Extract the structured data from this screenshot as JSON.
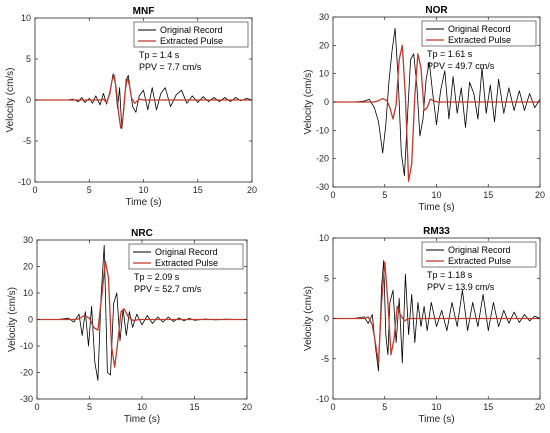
{
  "chart_data": [
    {
      "type": "line",
      "title": "MNF",
      "xlabel": "Time (s)",
      "ylabel": "Velocity (cm/s)",
      "xlim": [
        0,
        20
      ],
      "ylim": [
        -10,
        10
      ],
      "xticks": [
        0,
        5,
        10,
        15,
        20
      ],
      "yticks": [
        -10,
        -5,
        0,
        5,
        10
      ],
      "grid": false,
      "legend_position": "top-right",
      "annotations": [
        "Tp = 1.4 s",
        "PPV = 7.7 cm/s"
      ],
      "series": [
        {
          "name": "Original Record",
          "color": "#000000",
          "x": [
            0,
            1,
            2,
            3,
            3.5,
            4,
            4.3,
            4.6,
            5,
            5.3,
            5.6,
            6,
            6.3,
            6.6,
            7,
            7.2,
            7.4,
            7.6,
            7.8,
            8,
            8.2,
            8.4,
            8.6,
            8.8,
            9,
            9.3,
            9.6,
            10,
            10.4,
            10.8,
            11.2,
            11.6,
            12,
            12.5,
            13,
            13.5,
            14,
            14.5,
            15,
            15.5,
            16,
            16.5,
            17,
            17.5,
            18,
            18.5,
            19,
            19.5,
            20
          ],
          "y": [
            0,
            0,
            0,
            0,
            0.1,
            -0.2,
            0.3,
            -0.3,
            0.2,
            -0.4,
            0.5,
            -0.6,
            0.8,
            -0.5,
            1.5,
            3.2,
            2,
            -1,
            1.5,
            -3.5,
            -1,
            2.5,
            3,
            1,
            -0.8,
            -1.5,
            0.5,
            1.2,
            -1.2,
            1.5,
            -1.2,
            0.8,
            1.5,
            -0.8,
            0.6,
            1.2,
            -0.4,
            0.5,
            -0.3,
            0.4,
            -0.2,
            0.3,
            -0.2,
            0.3,
            -0.2,
            0.3,
            -0.1,
            0.2,
            0
          ]
        },
        {
          "name": "Extracted Pulse",
          "color": "#c0392b",
          "x": [
            0,
            6,
            6.3,
            6.6,
            6.9,
            7.1,
            7.3,
            7.5,
            7.7,
            7.9,
            8.1,
            8.3,
            8.5,
            8.7,
            8.9,
            9.2,
            9.6,
            10,
            20
          ],
          "y": [
            0,
            0,
            0.1,
            -0.3,
            0.8,
            2.4,
            3,
            1.2,
            -1.5,
            -3.4,
            -2.2,
            1,
            2.7,
            1.8,
            0.2,
            -0.4,
            0.1,
            0,
            0
          ]
        }
      ]
    },
    {
      "type": "line",
      "title": "NOR",
      "xlabel": "Time (s)",
      "ylabel": "Velocity (cm/s)",
      "xlim": [
        0,
        20
      ],
      "ylim": [
        -30,
        30
      ],
      "xticks": [
        0,
        5,
        10,
        15,
        20
      ],
      "yticks": [
        -30,
        -20,
        -10,
        0,
        10,
        20,
        30
      ],
      "grid": false,
      "legend_position": "top-right",
      "annotations": [
        "Tp = 1.61 s",
        "PPV = 49.7 cm/s"
      ],
      "series": [
        {
          "name": "Original Record",
          "color": "#000000",
          "x": [
            0,
            2,
            3,
            3.5,
            4,
            4.4,
            4.8,
            5.1,
            5.4,
            5.7,
            6,
            6.3,
            6.6,
            6.9,
            7.2,
            7.5,
            7.8,
            8.1,
            8.4,
            8.7,
            9,
            9.3,
            9.6,
            10,
            10.4,
            10.8,
            11.2,
            11.6,
            12,
            12.4,
            12.8,
            13.2,
            13.6,
            14,
            14.4,
            14.8,
            15.2,
            15.6,
            16,
            16.5,
            17,
            17.5,
            18,
            18.5,
            19,
            19.5,
            20
          ],
          "y": [
            0,
            0,
            0.3,
            1,
            -2,
            -7,
            -18,
            -8,
            7,
            18,
            26,
            8,
            -18,
            -26,
            -5,
            15,
            17,
            6,
            -12,
            -6,
            8,
            14,
            4,
            -8,
            4,
            11,
            -6,
            9,
            -4,
            5,
            -9,
            7,
            3,
            -6,
            12,
            -4,
            6,
            -7,
            8,
            -4,
            5,
            -3,
            4,
            -3,
            3,
            -2,
            1
          ]
        },
        {
          "name": "Extracted Pulse",
          "color": "#c0392b",
          "x": [
            0,
            4,
            4.4,
            4.8,
            5.2,
            5.5,
            5.8,
            6.1,
            6.4,
            6.7,
            7,
            7.3,
            7.6,
            7.9,
            8.2,
            8.5,
            8.8,
            9.1,
            9.4,
            9.8,
            10.2,
            20
          ],
          "y": [
            0,
            0,
            0.5,
            1.2,
            0.5,
            -2,
            -6,
            -1,
            15,
            20,
            2,
            -28,
            -22,
            2,
            17,
            12,
            -3,
            -2,
            1,
            0.3,
            0,
            0
          ]
        }
      ]
    },
    {
      "type": "line",
      "title": "NRC",
      "xlabel": "Time (s)",
      "ylabel": "Velocity (cm/s)",
      "xlim": [
        0,
        20
      ],
      "ylim": [
        -30,
        30
      ],
      "xticks": [
        0,
        5,
        10,
        15,
        20
      ],
      "yticks": [
        -30,
        -20,
        -10,
        0,
        10,
        20,
        30
      ],
      "grid": false,
      "legend_position": "top-right",
      "annotations": [
        "Tp = 2.09 s",
        "PPV = 52.7 cm/s"
      ],
      "series": [
        {
          "name": "Original Record",
          "color": "#000000",
          "x": [
            0,
            2,
            3,
            3.5,
            4,
            4.3,
            4.6,
            4.9,
            5.2,
            5.5,
            5.8,
            6.1,
            6.4,
            6.7,
            7,
            7.3,
            7.6,
            7.9,
            8.2,
            8.5,
            8.8,
            9.1,
            9.5,
            10,
            10.5,
            11,
            11.5,
            12,
            12.5,
            13,
            13.5,
            14,
            14.5,
            15,
            16,
            17,
            18,
            19,
            20
          ],
          "y": [
            0,
            0,
            0.5,
            -1,
            2,
            -6,
            3,
            -10,
            5,
            -16,
            -23,
            8,
            28,
            -20,
            -21,
            6,
            10,
            -8,
            4,
            -6,
            3,
            -3,
            2,
            -2,
            1.5,
            -1.5,
            1,
            -1,
            1,
            -0.8,
            0.6,
            -0.5,
            0.4,
            -0.3,
            0.2,
            -0.1,
            0.1,
            0,
            0
          ]
        },
        {
          "name": "Extracted Pulse",
          "color": "#c0392b",
          "x": [
            0,
            3.5,
            4,
            4.5,
            5,
            5.4,
            5.8,
            6.2,
            6.5,
            6.8,
            7.1,
            7.4,
            7.7,
            8,
            8.3,
            8.7,
            9.2,
            9.7,
            20
          ],
          "y": [
            0,
            0,
            0.3,
            1.5,
            0.5,
            -3,
            -4,
            10,
            22,
            16,
            -10,
            -18,
            -8,
            3,
            4,
            1,
            -0.5,
            0,
            0
          ]
        }
      ]
    },
    {
      "type": "line",
      "title": "RM33",
      "xlabel": "Time (s)",
      "ylabel": "Velocity (cm/s)",
      "xlim": [
        0,
        20
      ],
      "ylim": [
        -10,
        10
      ],
      "xticks": [
        0,
        5,
        10,
        15,
        20
      ],
      "yticks": [
        -10,
        -5,
        0,
        5,
        10
      ],
      "grid": false,
      "legend_position": "top-right",
      "annotations": [
        "Tp = 1.18 s",
        "PPV = 13.9 cm/s"
      ],
      "series": [
        {
          "name": "Original Record",
          "color": "#000000",
          "x": [
            0,
            2,
            3,
            3.4,
            3.8,
            4.1,
            4.4,
            4.7,
            4.9,
            5.1,
            5.3,
            5.5,
            5.8,
            6.1,
            6.4,
            6.7,
            7,
            7.3,
            7.6,
            7.9,
            8.2,
            8.5,
            8.8,
            9.1,
            9.5,
            10,
            10.5,
            11,
            11.5,
            12,
            12.5,
            13,
            13.5,
            14,
            14.5,
            15,
            15.5,
            16,
            16.5,
            17,
            17.5,
            18,
            18.5,
            19,
            19.5,
            20
          ],
          "y": [
            0,
            0,
            0.2,
            -0.6,
            0.5,
            -3.5,
            -6.5,
            4,
            7.2,
            -2,
            -4.5,
            2,
            3.5,
            -3,
            2.5,
            -5.5,
            5.5,
            -2,
            3,
            -3,
            2,
            -1,
            1.5,
            -1.5,
            2,
            -1,
            1,
            -1.5,
            2,
            -1,
            3.5,
            -1.5,
            2,
            -1,
            3,
            -1.5,
            2,
            -1,
            1,
            -0.6,
            0.8,
            -0.5,
            0.5,
            -0.3,
            0.3,
            0
          ]
        },
        {
          "name": "Extracted Pulse",
          "color": "#c0392b",
          "x": [
            0,
            3,
            3.4,
            3.8,
            4.1,
            4.4,
            4.7,
            5,
            5.3,
            5.6,
            5.9,
            6.2,
            6.5,
            6.9,
            7.3,
            20
          ],
          "y": [
            0,
            0,
            0.2,
            -0.8,
            -3,
            -5.5,
            2,
            7,
            2,
            -4.5,
            -2.5,
            1.5,
            0.5,
            -0.3,
            0,
            0
          ]
        }
      ]
    }
  ]
}
